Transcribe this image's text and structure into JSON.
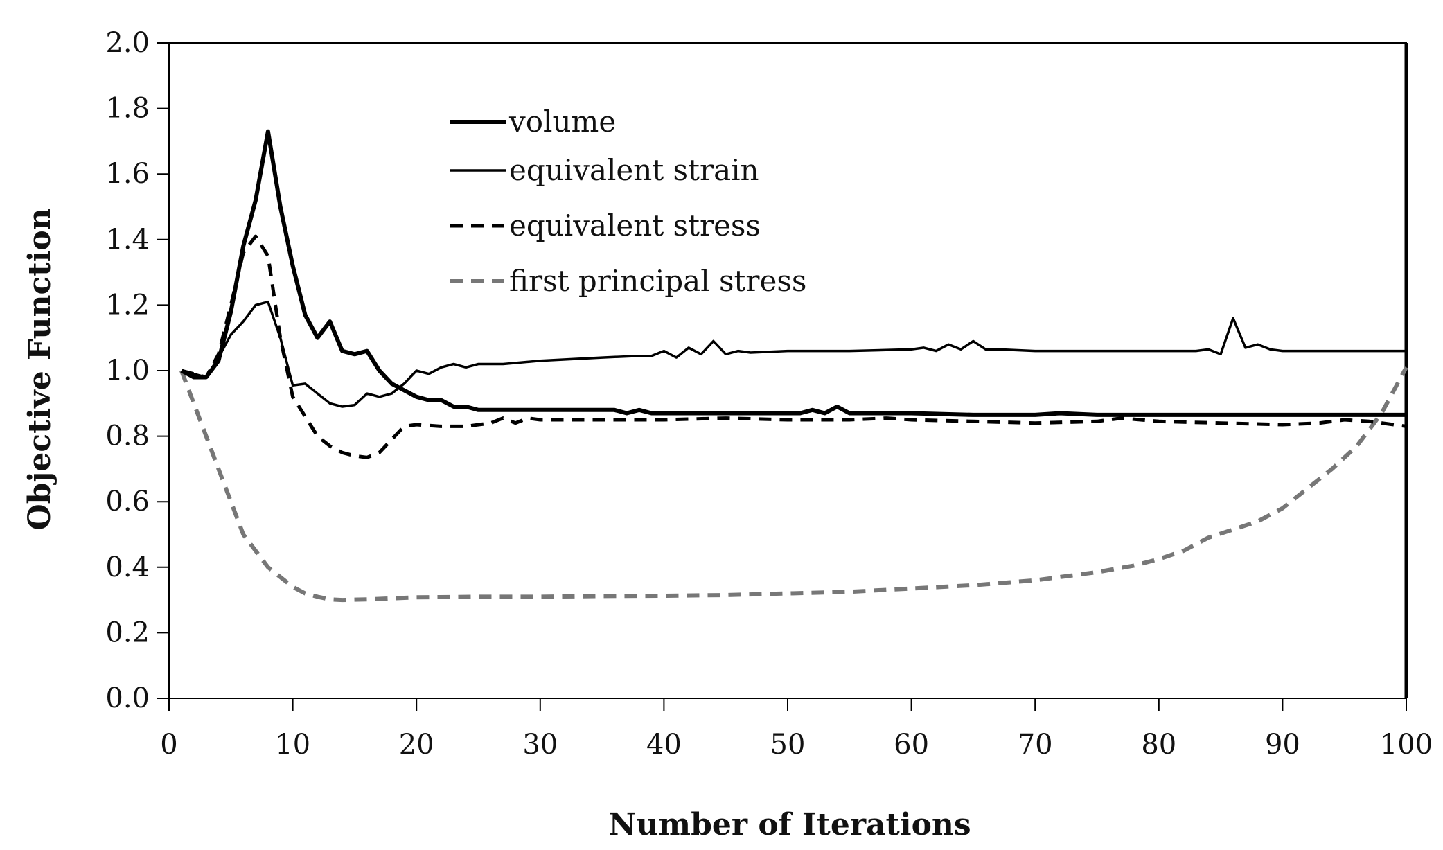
{
  "chart_data": {
    "type": "line",
    "title": "",
    "xlabel": "Number of Iterations",
    "ylabel": "Objective Function",
    "xlim": [
      0,
      100
    ],
    "ylim": [
      0.0,
      2.0
    ],
    "x_ticks": [
      "0",
      "10",
      "20",
      "30",
      "40",
      "50",
      "60",
      "70",
      "80",
      "90",
      "100"
    ],
    "y_ticks": [
      "0.0",
      "0.2",
      "0.4",
      "0.6",
      "0.8",
      "1.0",
      "1.2",
      "1.4",
      "1.6",
      "1.8",
      "2.0"
    ],
    "grid": false,
    "legend_position": "top-center",
    "series": [
      {
        "name": "volume",
        "style": "solid-thick",
        "color": "#000000",
        "points": [
          [
            1,
            1.0
          ],
          [
            2,
            0.98
          ],
          [
            3,
            0.98
          ],
          [
            4,
            1.03
          ],
          [
            5,
            1.18
          ],
          [
            6,
            1.38
          ],
          [
            7,
            1.52
          ],
          [
            8,
            1.73
          ],
          [
            9,
            1.5
          ],
          [
            10,
            1.32
          ],
          [
            11,
            1.17
          ],
          [
            12,
            1.1
          ],
          [
            13,
            1.15
          ],
          [
            14,
            1.06
          ],
          [
            15,
            1.05
          ],
          [
            16,
            1.06
          ],
          [
            17,
            1.0
          ],
          [
            18,
            0.96
          ],
          [
            19,
            0.94
          ],
          [
            20,
            0.92
          ],
          [
            21,
            0.91
          ],
          [
            22,
            0.91
          ],
          [
            23,
            0.89
          ],
          [
            24,
            0.89
          ],
          [
            25,
            0.88
          ],
          [
            26,
            0.88
          ],
          [
            28,
            0.88
          ],
          [
            30,
            0.88
          ],
          [
            32,
            0.88
          ],
          [
            34,
            0.88
          ],
          [
            36,
            0.88
          ],
          [
            37,
            0.87
          ],
          [
            38,
            0.88
          ],
          [
            39,
            0.87
          ],
          [
            40,
            0.87
          ],
          [
            45,
            0.87
          ],
          [
            50,
            0.87
          ],
          [
            51,
            0.87
          ],
          [
            52,
            0.88
          ],
          [
            53,
            0.87
          ],
          [
            54,
            0.89
          ],
          [
            55,
            0.87
          ],
          [
            56,
            0.87
          ],
          [
            60,
            0.87
          ],
          [
            65,
            0.865
          ],
          [
            70,
            0.865
          ],
          [
            72,
            0.87
          ],
          [
            75,
            0.865
          ],
          [
            80,
            0.865
          ],
          [
            85,
            0.865
          ],
          [
            90,
            0.865
          ],
          [
            95,
            0.865
          ],
          [
            100,
            0.865
          ]
        ]
      },
      {
        "name": "equivalent strain",
        "style": "solid-thin",
        "color": "#000000",
        "points": [
          [
            1,
            1.0
          ],
          [
            2,
            0.99
          ],
          [
            3,
            0.98
          ],
          [
            4,
            1.04
          ],
          [
            5,
            1.11
          ],
          [
            6,
            1.15
          ],
          [
            7,
            1.2
          ],
          [
            8,
            1.21
          ],
          [
            9,
            1.1
          ],
          [
            10,
            0.955
          ],
          [
            11,
            0.96
          ],
          [
            12,
            0.93
          ],
          [
            13,
            0.9
          ],
          [
            14,
            0.89
          ],
          [
            15,
            0.895
          ],
          [
            16,
            0.93
          ],
          [
            17,
            0.92
          ],
          [
            18,
            0.93
          ],
          [
            19,
            0.96
          ],
          [
            20,
            1.0
          ],
          [
            21,
            0.99
          ],
          [
            22,
            1.01
          ],
          [
            23,
            1.02
          ],
          [
            24,
            1.01
          ],
          [
            25,
            1.02
          ],
          [
            27,
            1.02
          ],
          [
            30,
            1.03
          ],
          [
            35,
            1.04
          ],
          [
            38,
            1.045
          ],
          [
            39,
            1.045
          ],
          [
            40,
            1.06
          ],
          [
            41,
            1.04
          ],
          [
            42,
            1.07
          ],
          [
            43,
            1.05
          ],
          [
            44,
            1.09
          ],
          [
            45,
            1.05
          ],
          [
            46,
            1.06
          ],
          [
            47,
            1.055
          ],
          [
            50,
            1.06
          ],
          [
            55,
            1.06
          ],
          [
            60,
            1.065
          ],
          [
            61,
            1.07
          ],
          [
            62,
            1.06
          ],
          [
            63,
            1.08
          ],
          [
            64,
            1.065
          ],
          [
            65,
            1.09
          ],
          [
            66,
            1.065
          ],
          [
            67,
            1.065
          ],
          [
            70,
            1.06
          ],
          [
            75,
            1.06
          ],
          [
            80,
            1.06
          ],
          [
            83,
            1.06
          ],
          [
            84,
            1.065
          ],
          [
            85,
            1.05
          ],
          [
            86,
            1.16
          ],
          [
            87,
            1.07
          ],
          [
            88,
            1.08
          ],
          [
            89,
            1.065
          ],
          [
            90,
            1.06
          ],
          [
            95,
            1.06
          ],
          [
            100,
            1.06
          ]
        ]
      },
      {
        "name": "equivalent stress",
        "style": "dashed",
        "color": "#000000",
        "points": [
          [
            1,
            1.0
          ],
          [
            2,
            0.99
          ],
          [
            3,
            0.98
          ],
          [
            4,
            1.05
          ],
          [
            5,
            1.2
          ],
          [
            6,
            1.36
          ],
          [
            7,
            1.41
          ],
          [
            8,
            1.35
          ],
          [
            9,
            1.1
          ],
          [
            10,
            0.92
          ],
          [
            11,
            0.86
          ],
          [
            12,
            0.8
          ],
          [
            13,
            0.77
          ],
          [
            14,
            0.75
          ],
          [
            15,
            0.74
          ],
          [
            16,
            0.735
          ],
          [
            17,
            0.75
          ],
          [
            18,
            0.79
          ],
          [
            19,
            0.83
          ],
          [
            20,
            0.835
          ],
          [
            22,
            0.83
          ],
          [
            24,
            0.83
          ],
          [
            26,
            0.84
          ],
          [
            27,
            0.855
          ],
          [
            28,
            0.84
          ],
          [
            29,
            0.855
          ],
          [
            30,
            0.85
          ],
          [
            35,
            0.85
          ],
          [
            40,
            0.85
          ],
          [
            45,
            0.855
          ],
          [
            50,
            0.85
          ],
          [
            55,
            0.85
          ],
          [
            58,
            0.855
          ],
          [
            60,
            0.85
          ],
          [
            65,
            0.845
          ],
          [
            70,
            0.84
          ],
          [
            75,
            0.845
          ],
          [
            77,
            0.855
          ],
          [
            80,
            0.845
          ],
          [
            85,
            0.84
          ],
          [
            90,
            0.835
          ],
          [
            93,
            0.84
          ],
          [
            95,
            0.85
          ],
          [
            97,
            0.845
          ],
          [
            100,
            0.83
          ]
        ]
      },
      {
        "name": "first principal stress",
        "style": "dashed-gray",
        "color": "#777777",
        "points": [
          [
            1,
            1.0
          ],
          [
            2,
            0.9
          ],
          [
            3,
            0.8
          ],
          [
            4,
            0.7
          ],
          [
            5,
            0.6
          ],
          [
            6,
            0.5
          ],
          [
            7,
            0.45
          ],
          [
            8,
            0.4
          ],
          [
            9,
            0.37
          ],
          [
            10,
            0.34
          ],
          [
            11,
            0.32
          ],
          [
            12,
            0.31
          ],
          [
            13,
            0.302
          ],
          [
            14,
            0.3
          ],
          [
            16,
            0.302
          ],
          [
            18,
            0.305
          ],
          [
            20,
            0.308
          ],
          [
            25,
            0.31
          ],
          [
            30,
            0.31
          ],
          [
            35,
            0.312
          ],
          [
            40,
            0.313
          ],
          [
            45,
            0.315
          ],
          [
            50,
            0.32
          ],
          [
            55,
            0.325
          ],
          [
            60,
            0.335
          ],
          [
            65,
            0.345
          ],
          [
            70,
            0.36
          ],
          [
            73,
            0.375
          ],
          [
            75,
            0.385
          ],
          [
            78,
            0.405
          ],
          [
            80,
            0.425
          ],
          [
            82,
            0.45
          ],
          [
            84,
            0.49
          ],
          [
            86,
            0.515
          ],
          [
            88,
            0.54
          ],
          [
            90,
            0.58
          ],
          [
            92,
            0.64
          ],
          [
            94,
            0.7
          ],
          [
            96,
            0.77
          ],
          [
            98,
            0.87
          ],
          [
            100,
            1.01
          ]
        ]
      }
    ]
  }
}
